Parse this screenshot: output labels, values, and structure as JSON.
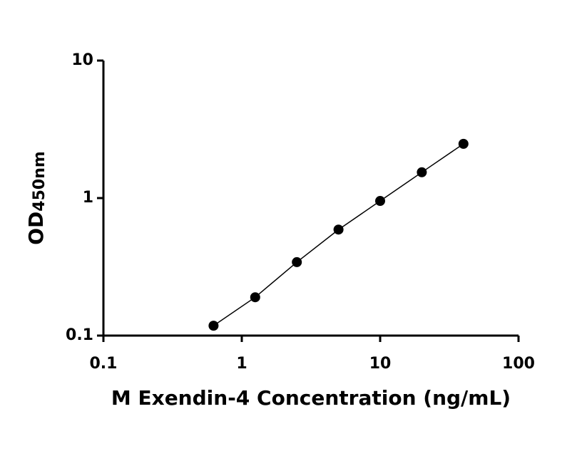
{
  "chart_data": {
    "type": "scatter",
    "x_label": "M Exendin-4 Concentration (ng/mL)",
    "y_label": "OD",
    "y_label_sub": "450nm",
    "x": [
      0.625,
      1.25,
      2.5,
      5,
      10,
      20,
      40
    ],
    "series": [
      {
        "color": "#000000",
        "values": [
          0.118,
          0.19,
          0.342,
          0.59,
          0.953,
          1.54,
          2.48
        ]
      }
    ],
    "xlim": [
      0.1,
      100
    ],
    "ylim": [
      0.1,
      10
    ],
    "xticks": [
      0.1,
      1,
      10,
      100
    ],
    "yticks": [
      0.1,
      1,
      10
    ],
    "x_log": true,
    "y_log": true,
    "fit_line": true
  }
}
